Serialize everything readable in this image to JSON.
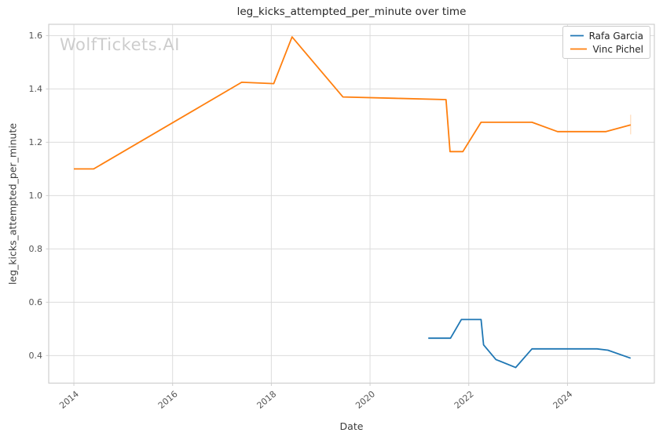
{
  "figure": {
    "title": "leg_kicks_attempted_per_minute over time",
    "watermark": "WolfTickets.AI",
    "xlabel": "Date",
    "ylabel": "leg_kicks_attempted_per_minute"
  },
  "legend": {
    "items": [
      {
        "label": "Rafa Garcia",
        "color": "#1f77b4"
      },
      {
        "label": "Vinc Pichel",
        "color": "#ff7f0e"
      }
    ]
  },
  "chart_data": {
    "type": "line",
    "title": "leg_kicks_attempted_per_minute over time",
    "xlabel": "Date",
    "ylabel": "leg_kicks_attempted_per_minute",
    "xlim": [
      2013.49,
      2025.76
    ],
    "ylim": [
      0.2965,
      1.6425
    ],
    "x_ticks": [
      2014,
      2016,
      2018,
      2020,
      2022,
      2024
    ],
    "x_tick_labels": [
      "2014",
      "2016",
      "2018",
      "2020",
      "2022",
      "2024"
    ],
    "y_ticks": [
      0.4,
      0.6,
      0.8,
      1.0,
      1.2,
      1.4,
      1.6
    ],
    "y_tick_labels": [
      "0.4",
      "0.6",
      "0.8",
      "1.0",
      "1.2",
      "1.4",
      "1.6"
    ],
    "grid": true,
    "legend_position": "upper right",
    "series": [
      {
        "name": "Rafa Garcia",
        "color": "#1f77b4",
        "end_tick": false,
        "x": [
          2021.18,
          2021.63,
          2021.85,
          2022.25,
          2022.3,
          2022.55,
          2022.95,
          2023.28,
          2024.6,
          2024.82,
          2025.28
        ],
        "y": [
          0.465,
          0.465,
          0.535,
          0.535,
          0.44,
          0.385,
          0.355,
          0.425,
          0.425,
          0.42,
          0.39
        ]
      },
      {
        "name": "Vinc Pichel",
        "color": "#ff7f0e",
        "end_tick": true,
        "x": [
          2014.0,
          2014.4,
          2017.4,
          2018.05,
          2018.42,
          2019.45,
          2020.5,
          2021.54,
          2021.62,
          2021.88,
          2022.25,
          2023.28,
          2023.8,
          2024.78,
          2025.28
        ],
        "y": [
          1.1,
          1.1,
          1.425,
          1.42,
          1.595,
          1.37,
          1.365,
          1.36,
          1.165,
          1.165,
          1.275,
          1.275,
          1.24,
          1.24,
          1.265
        ]
      }
    ]
  }
}
